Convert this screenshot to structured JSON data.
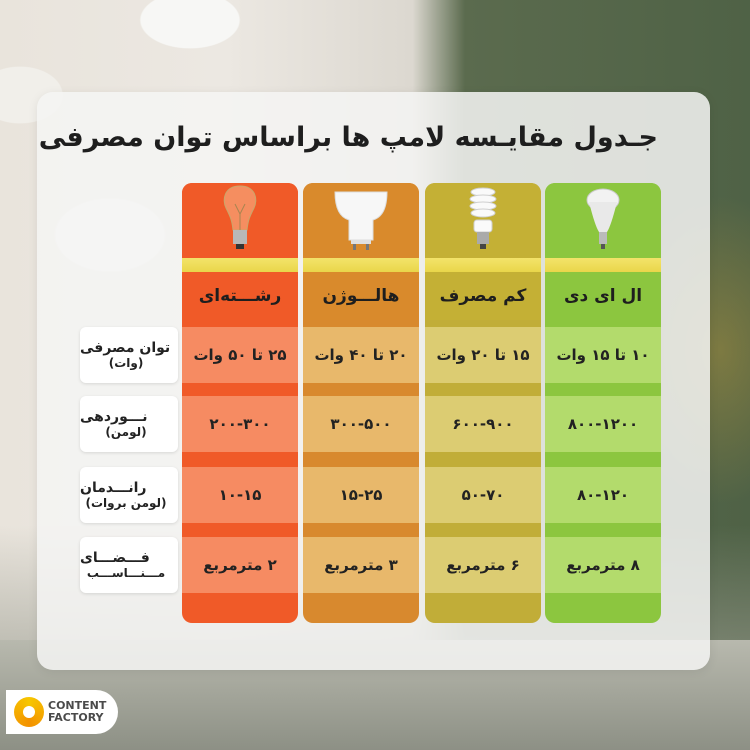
{
  "title": "جـدول مقایـسه لامپ ها براساس توان مصرفی",
  "row_labels": [
    {
      "line1": "توان مصرفی",
      "line2": "(وات)"
    },
    {
      "line1": "نـــوردهی",
      "line2": "(لومن)"
    },
    {
      "line1": "رانـــدمان",
      "line2": "(لومن بروات)"
    },
    {
      "line1": "فـــضـــای",
      "line2": "مـــنـــاســـب"
    }
  ],
  "columns": [
    {
      "name": "ال ای دی",
      "icon": "led-bulb-icon",
      "header_color": "#8cc63f",
      "cell_color": "#b3db6c",
      "gap_color": "#8cc63f",
      "values": [
        "۱۰ تا ۱۵ وات",
        "۸۰۰-۱۲۰۰",
        "۸۰-۱۲۰",
        "۸ مترمربع"
      ]
    },
    {
      "name": "کم مصرف",
      "icon": "cfl-bulb-icon",
      "header_color": "#c4b035",
      "cell_color": "#dccc72",
      "gap_color": "#c1ad38",
      "values": [
        "۱۵ تا ۲۰ وات",
        "۶۰۰-۹۰۰",
        "۵۰-۷۰",
        "۶ مترمربع"
      ]
    },
    {
      "name": "هالـــوژن",
      "icon": "halogen-bulb-icon",
      "header_color": "#d98a2c",
      "cell_color": "#e8b86b",
      "gap_color": "#d8892e",
      "values": [
        "۲۰ تا ۴۰ وات",
        "۳۰۰-۵۰۰",
        "۱۵-۲۵",
        "۳ مترمربع"
      ]
    },
    {
      "name": "رشـــته‌ای",
      "icon": "incandescent-bulb-icon",
      "header_color": "#f05a28",
      "cell_color": "#f68b62",
      "gap_color": "#f05a28",
      "values": [
        "۲۵ تا ۵۰ وات",
        "۲۰۰-۳۰۰",
        "۱۰-۱۵",
        "۲ مترمربع"
      ]
    }
  ],
  "logo": {
    "line1": "CONTENT",
    "line2": "FACTORY"
  }
}
